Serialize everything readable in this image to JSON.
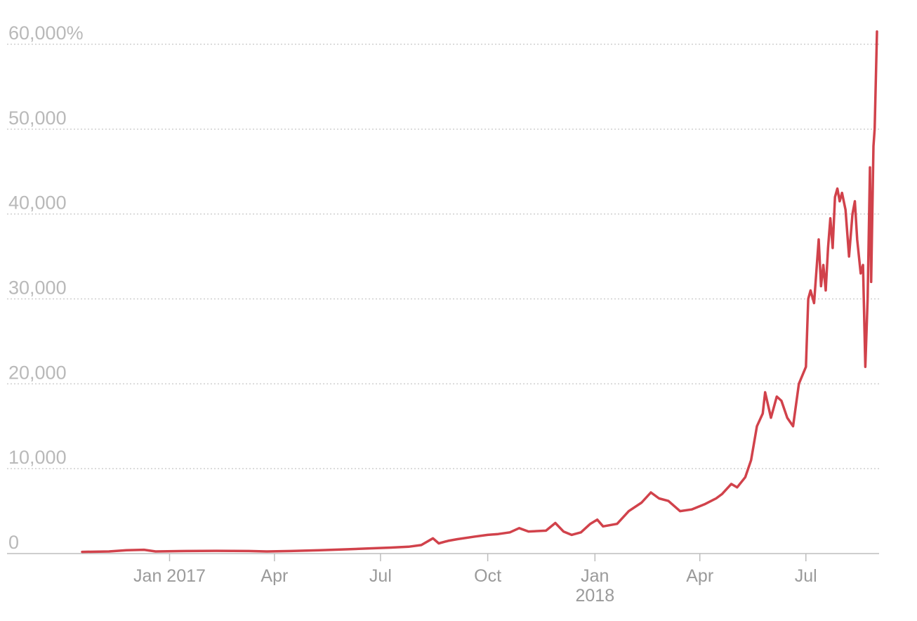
{
  "chart_data": {
    "type": "line",
    "title": "",
    "xlabel": "",
    "ylabel": "",
    "ylim": [
      0,
      60000
    ],
    "xlim": [
      "2016-10-18",
      "2018-08-31"
    ],
    "grid": true,
    "legend": "none",
    "colors": {
      "line": "#d1424b",
      "grid": "#cfcfcf",
      "tick_label": "#b9b9b9"
    },
    "y_ticks": [
      {
        "value": 0,
        "label": "0"
      },
      {
        "value": 10000,
        "label": "10,000"
      },
      {
        "value": 20000,
        "label": "20,000"
      },
      {
        "value": 30000,
        "label": "30,000"
      },
      {
        "value": 40000,
        "label": "40,000"
      },
      {
        "value": 50000,
        "label": "50,000"
      },
      {
        "value": 60000,
        "label": "60,000%"
      }
    ],
    "x_ticks": [
      {
        "date": "2017-01-01",
        "label": "Jan 2017",
        "label2": ""
      },
      {
        "date": "2017-04-01",
        "label": "Apr",
        "label2": ""
      },
      {
        "date": "2017-07-01",
        "label": "Jul",
        "label2": ""
      },
      {
        "date": "2017-10-01",
        "label": "Oct",
        "label2": ""
      },
      {
        "date": "2018-01-01",
        "label": "Jan",
        "label2": "2018"
      },
      {
        "date": "2018-04-01",
        "label": "Apr",
        "label2": ""
      },
      {
        "date": "2018-07-01",
        "label": "Jul",
        "label2": ""
      }
    ],
    "series": [
      {
        "values": [
          [
            "2016-10-18",
            200
          ],
          [
            "2016-11-10",
            250
          ],
          [
            "2016-11-25",
            400
          ],
          [
            "2016-12-10",
            450
          ],
          [
            "2016-12-20",
            250
          ],
          [
            "2017-01-15",
            300
          ],
          [
            "2017-02-10",
            320
          ],
          [
            "2017-03-10",
            300
          ],
          [
            "2017-03-25",
            250
          ],
          [
            "2017-04-15",
            300
          ],
          [
            "2017-05-10",
            400
          ],
          [
            "2017-06-01",
            500
          ],
          [
            "2017-06-20",
            600
          ],
          [
            "2017-07-10",
            700
          ],
          [
            "2017-07-25",
            800
          ],
          [
            "2017-08-05",
            1000
          ],
          [
            "2017-08-15",
            1800
          ],
          [
            "2017-08-20",
            1200
          ],
          [
            "2017-08-28",
            1500
          ],
          [
            "2017-09-05",
            1700
          ],
          [
            "2017-09-20",
            2000
          ],
          [
            "2017-10-01",
            2200
          ],
          [
            "2017-10-10",
            2300
          ],
          [
            "2017-10-20",
            2500
          ],
          [
            "2017-10-28",
            3000
          ],
          [
            "2017-11-05",
            2600
          ],
          [
            "2017-11-20",
            2700
          ],
          [
            "2017-11-28",
            3600
          ],
          [
            "2017-12-05",
            2600
          ],
          [
            "2017-12-12",
            2200
          ],
          [
            "2017-12-20",
            2500
          ],
          [
            "2017-12-28",
            3500
          ],
          [
            "2018-01-03",
            4000
          ],
          [
            "2018-01-08",
            3200
          ],
          [
            "2018-01-20",
            3500
          ],
          [
            "2018-01-30",
            5000
          ],
          [
            "2018-02-10",
            6000
          ],
          [
            "2018-02-18",
            7200
          ],
          [
            "2018-02-25",
            6500
          ],
          [
            "2018-03-05",
            6200
          ],
          [
            "2018-03-15",
            5000
          ],
          [
            "2018-03-25",
            5200
          ],
          [
            "2018-04-05",
            5800
          ],
          [
            "2018-04-15",
            6500
          ],
          [
            "2018-04-20",
            7000
          ],
          [
            "2018-04-28",
            8200
          ],
          [
            "2018-05-03",
            7800
          ],
          [
            "2018-05-10",
            9000
          ],
          [
            "2018-05-15",
            11000
          ],
          [
            "2018-05-20",
            15000
          ],
          [
            "2018-05-25",
            16500
          ],
          [
            "2018-05-27",
            19000
          ],
          [
            "2018-06-01",
            16000
          ],
          [
            "2018-06-06",
            18500
          ],
          [
            "2018-06-10",
            18000
          ],
          [
            "2018-06-15",
            16000
          ],
          [
            "2018-06-20",
            15000
          ],
          [
            "2018-06-25",
            20000
          ],
          [
            "2018-07-01",
            22000
          ],
          [
            "2018-07-03",
            30000
          ],
          [
            "2018-07-05",
            31000
          ],
          [
            "2018-07-08",
            29500
          ],
          [
            "2018-07-12",
            37000
          ],
          [
            "2018-07-14",
            31500
          ],
          [
            "2018-07-16",
            34000
          ],
          [
            "2018-07-18",
            31000
          ],
          [
            "2018-07-20",
            36000
          ],
          [
            "2018-07-22",
            39500
          ],
          [
            "2018-07-24",
            36000
          ],
          [
            "2018-07-26",
            42000
          ],
          [
            "2018-07-28",
            43000
          ],
          [
            "2018-07-30",
            41500
          ],
          [
            "2018-08-01",
            42500
          ],
          [
            "2018-08-04",
            40500
          ],
          [
            "2018-08-07",
            35000
          ],
          [
            "2018-08-10",
            40000
          ],
          [
            "2018-08-12",
            41500
          ],
          [
            "2018-08-14",
            37000
          ],
          [
            "2018-08-17",
            33000
          ],
          [
            "2018-08-19",
            34000
          ],
          [
            "2018-08-21",
            22000
          ],
          [
            "2018-08-23",
            30000
          ],
          [
            "2018-08-25",
            45500
          ],
          [
            "2018-08-26",
            32000
          ],
          [
            "2018-08-28",
            48000
          ],
          [
            "2018-08-29",
            50000
          ],
          [
            "2018-08-31",
            61500
          ]
        ]
      }
    ]
  }
}
